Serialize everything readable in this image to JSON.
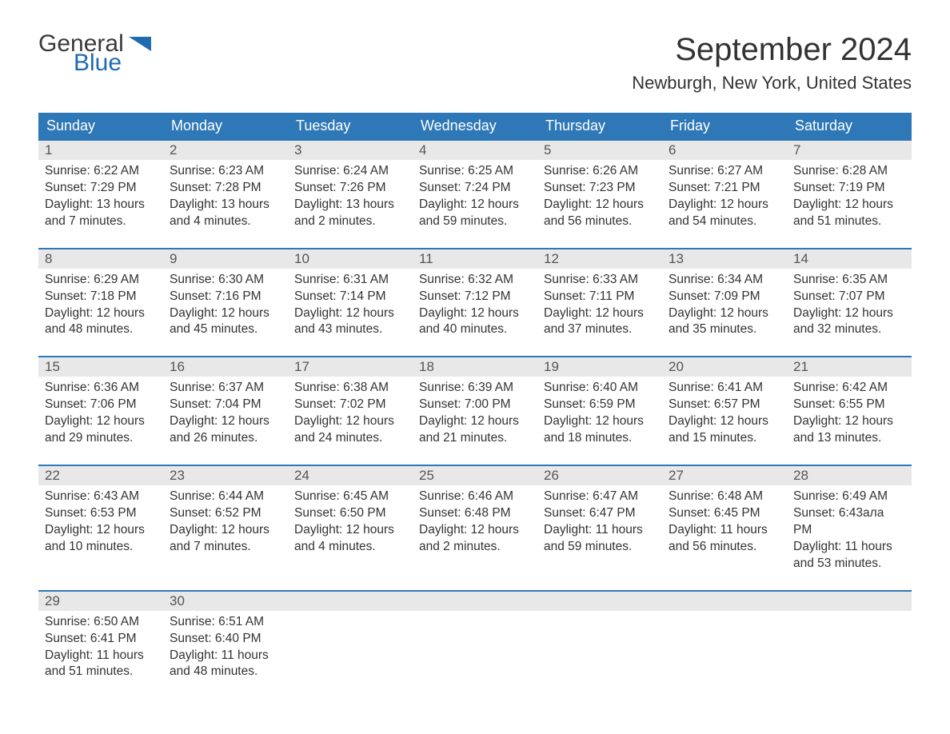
{
  "logo": {
    "text1": "General",
    "text2": "Blue",
    "shape_color": "#1f6bb0"
  },
  "title": "September 2024",
  "location": "Newburgh, New York, United States",
  "colors": {
    "header_bg": "#2f78b7",
    "header_text": "#ffffff",
    "daynum_bg": "#e8e8e8",
    "row_border": "#2f78b7",
    "text": "#333333"
  },
  "weekdays": [
    "Sunday",
    "Monday",
    "Tuesday",
    "Wednesday",
    "Thursday",
    "Friday",
    "Saturday"
  ],
  "weeks": [
    [
      {
        "n": "1",
        "sunrise": "Sunrise: 6:22 AM",
        "sunset": "Sunset: 7:29 PM",
        "day": "Daylight: 13 hours and 7 minutes."
      },
      {
        "n": "2",
        "sunrise": "Sunrise: 6:23 AM",
        "sunset": "Sunset: 7:28 PM",
        "day": "Daylight: 13 hours and 4 minutes."
      },
      {
        "n": "3",
        "sunrise": "Sunrise: 6:24 AM",
        "sunset": "Sunset: 7:26 PM",
        "day": "Daylight: 13 hours and 2 minutes."
      },
      {
        "n": "4",
        "sunrise": "Sunrise: 6:25 AM",
        "sunset": "Sunset: 7:24 PM",
        "day": "Daylight: 12 hours and 59 minutes."
      },
      {
        "n": "5",
        "sunrise": "Sunrise: 6:26 AM",
        "sunset": "Sunset: 7:23 PM",
        "day": "Daylight: 12 hours and 56 minutes."
      },
      {
        "n": "6",
        "sunrise": "Sunrise: 6:27 AM",
        "sunset": "Sunset: 7:21 PM",
        "day": "Daylight: 12 hours and 54 minutes."
      },
      {
        "n": "7",
        "sunrise": "Sunrise: 6:28 AM",
        "sunset": "Sunset: 7:19 PM",
        "day": "Daylight: 12 hours and 51 minutes."
      }
    ],
    [
      {
        "n": "8",
        "sunrise": "Sunrise: 6:29 AM",
        "sunset": "Sunset: 7:18 PM",
        "day": "Daylight: 12 hours and 48 minutes."
      },
      {
        "n": "9",
        "sunrise": "Sunrise: 6:30 AM",
        "sunset": "Sunset: 7:16 PM",
        "day": "Daylight: 12 hours and 45 minutes."
      },
      {
        "n": "10",
        "sunrise": "Sunrise: 6:31 AM",
        "sunset": "Sunset: 7:14 PM",
        "day": "Daylight: 12 hours and 43 minutes."
      },
      {
        "n": "11",
        "sunrise": "Sunrise: 6:32 AM",
        "sunset": "Sunset: 7:12 PM",
        "day": "Daylight: 12 hours and 40 minutes."
      },
      {
        "n": "12",
        "sunrise": "Sunrise: 6:33 AM",
        "sunset": "Sunset: 7:11 PM",
        "day": "Daylight: 12 hours and 37 minutes."
      },
      {
        "n": "13",
        "sunrise": "Sunrise: 6:34 AM",
        "sunset": "Sunset: 7:09 PM",
        "day": "Daylight: 12 hours and 35 minutes."
      },
      {
        "n": "14",
        "sunrise": "Sunrise: 6:35 AM",
        "sunset": "Sunset: 7:07 PM",
        "day": "Daylight: 12 hours and 32 minutes."
      }
    ],
    [
      {
        "n": "15",
        "sunrise": "Sunrise: 6:36 AM",
        "sunset": "Sunset: 7:06 PM",
        "day": "Daylight: 12 hours and 29 minutes."
      },
      {
        "n": "16",
        "sunrise": "Sunrise: 6:37 AM",
        "sunset": "Sunset: 7:04 PM",
        "day": "Daylight: 12 hours and 26 minutes."
      },
      {
        "n": "17",
        "sunrise": "Sunrise: 6:38 AM",
        "sunset": "Sunset: 7:02 PM",
        "day": "Daylight: 12 hours and 24 minutes."
      },
      {
        "n": "18",
        "sunrise": "Sunrise: 6:39 AM",
        "sunset": "Sunset: 7:00 PM",
        "day": "Daylight: 12 hours and 21 minutes."
      },
      {
        "n": "19",
        "sunrise": "Sunrise: 6:40 AM",
        "sunset": "Sunset: 6:59 PM",
        "day": "Daylight: 12 hours and 18 minutes."
      },
      {
        "n": "20",
        "sunrise": "Sunrise: 6:41 AM",
        "sunset": "Sunset: 6:57 PM",
        "day": "Daylight: 12 hours and 15 minutes."
      },
      {
        "n": "21",
        "sunrise": "Sunrise: 6:42 AM",
        "sunset": "Sunset: 6:55 PM",
        "day": "Daylight: 12 hours and 13 minutes."
      }
    ],
    [
      {
        "n": "22",
        "sunrise": "Sunrise: 6:43 AM",
        "sunset": "Sunset: 6:53 PM",
        "day": "Daylight: 12 hours and 10 minutes."
      },
      {
        "n": "23",
        "sunrise": "Sunrise: 6:44 AM",
        "sunset": "Sunset: 6:52 PM",
        "day": "Daylight: 12 hours and 7 minutes."
      },
      {
        "n": "24",
        "sunrise": "Sunrise: 6:45 AM",
        "sunset": "Sunset: 6:50 PM",
        "day": "Daylight: 12 hours and 4 minutes."
      },
      {
        "n": "25",
        "sunrise": "Sunrise: 6:46 AM",
        "sunset": "Sunset: 6:48 PM",
        "day": "Daylight: 12 hours and 2 minutes."
      },
      {
        "n": "26",
        "sunrise": "Sunrise: 6:47 AM",
        "sunset": "Sunset: 6:47 PM",
        "day": "Daylight: 11 hours and 59 minutes."
      },
      {
        "n": "27",
        "sunrise": "Sunrise: 6:48 AM",
        "sunset": "Sunset: 6:45 PM",
        "day": "Daylight: 11 hours and 56 minutes."
      },
      {
        "n": "28",
        "sunrise": "Sunrise: 6:49 AM",
        "sunset": "Sunset: 6:43ала PM",
        "day": "Daylight: 11 hours and 53 minutes."
      }
    ],
    [
      {
        "n": "29",
        "sunrise": "Sunrise: 6:50 AM",
        "sunset": "Sunset: 6:41 PM",
        "day": "Daylight: 11 hours and 51 minutes."
      },
      {
        "n": "30",
        "sunrise": "Sunrise: 6:51 AM",
        "sunset": "Sunset: 6:40 PM",
        "day": "Daylight: 11 hours and 48 minutes."
      },
      null,
      null,
      null,
      null,
      null
    ]
  ]
}
